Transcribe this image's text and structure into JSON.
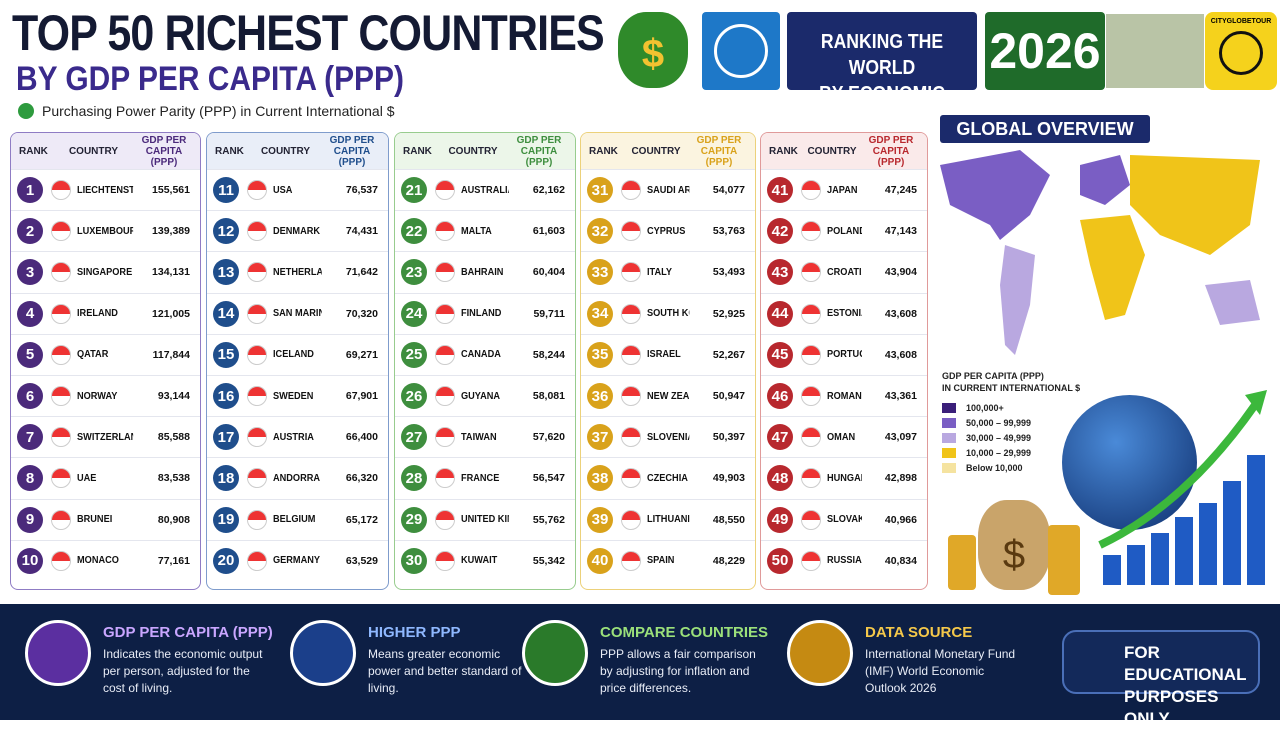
{
  "header": {
    "title": "TOP 50 RICHEST COUNTRIES",
    "subtitle": "BY GDP PER CAPITA (PPP)",
    "note": "Purchasing Power Parity (PPP) in Current International $",
    "badge": [
      "RANKING THE WORLD",
      "BY ECONOMIC POWER"
    ],
    "year": "2026",
    "logo": "CITYGLOBETOUR"
  },
  "table": {
    "columns": [
      "RANK",
      "COUNTRY",
      "GDP PER CAPITA (PPP)"
    ],
    "panels": [
      [
        [
          1,
          "LIECHTENSTEIN",
          "155,561"
        ],
        [
          2,
          "LUXEMBOURG",
          "139,389"
        ],
        [
          3,
          "SINGAPORE",
          "134,131"
        ],
        [
          4,
          "IRELAND",
          "121,005"
        ],
        [
          5,
          "QATAR",
          "117,844"
        ],
        [
          6,
          "NORWAY",
          "93,144"
        ],
        [
          7,
          "SWITZERLAND",
          "85,588"
        ],
        [
          8,
          "UAE",
          "83,538"
        ],
        [
          9,
          "BRUNEI",
          "80,908"
        ],
        [
          10,
          "MONACO",
          "77,161"
        ]
      ],
      [
        [
          11,
          "USA",
          "76,537"
        ],
        [
          12,
          "DENMARK",
          "74,431"
        ],
        [
          13,
          "NETHERLANDS",
          "71,642"
        ],
        [
          14,
          "SAN MARINO",
          "70,320"
        ],
        [
          15,
          "ICELAND",
          "69,271"
        ],
        [
          16,
          "SWEDEN",
          "67,901"
        ],
        [
          17,
          "AUSTRIA",
          "66,400"
        ],
        [
          18,
          "ANDORRA",
          "66,320"
        ],
        [
          19,
          "BELGIUM",
          "65,172"
        ],
        [
          20,
          "GERMANY",
          "63,529"
        ]
      ],
      [
        [
          21,
          "AUSTRALIA",
          "62,162"
        ],
        [
          22,
          "MALTA",
          "61,603"
        ],
        [
          23,
          "BAHRAIN",
          "60,404"
        ],
        [
          24,
          "FINLAND",
          "59,711"
        ],
        [
          25,
          "CANADA",
          "58,244"
        ],
        [
          26,
          "GUYANA",
          "58,081"
        ],
        [
          27,
          "TAIWAN",
          "57,620"
        ],
        [
          28,
          "FRANCE",
          "56,547"
        ],
        [
          29,
          "UNITED KINGDOM",
          "55,762"
        ],
        [
          30,
          "KUWAIT",
          "55,342"
        ]
      ],
      [
        [
          31,
          "SAUDI ARABIA",
          "54,077"
        ],
        [
          32,
          "CYPRUS",
          "53,763"
        ],
        [
          33,
          "ITALY",
          "53,493"
        ],
        [
          34,
          "SOUTH KOREA",
          "52,925"
        ],
        [
          35,
          "ISRAEL",
          "52,267"
        ],
        [
          36,
          "NEW ZEALAND",
          "50,947"
        ],
        [
          37,
          "SLOVENIA",
          "50,397"
        ],
        [
          38,
          "CZECHIA",
          "49,903"
        ],
        [
          39,
          "LITHUANIA",
          "48,550"
        ],
        [
          40,
          "SPAIN",
          "48,229"
        ]
      ],
      [
        [
          41,
          "JAPAN",
          "47,245"
        ],
        [
          42,
          "POLAND",
          "47,143"
        ],
        [
          43,
          "CROATIA",
          "43,904"
        ],
        [
          44,
          "ESTONIA",
          "43,608"
        ],
        [
          45,
          "PORTUGAL",
          "43,608"
        ],
        [
          46,
          "ROMANIA",
          "43,361"
        ],
        [
          47,
          "OMAN",
          "43,097"
        ],
        [
          48,
          "HUNGARY",
          "42,898"
        ],
        [
          49,
          "SLOVAKIA",
          "40,966"
        ],
        [
          50,
          "RUSSIA",
          "40,834"
        ]
      ]
    ]
  },
  "map": {
    "title": "GLOBAL OVERVIEW",
    "legend_title": [
      "GDP PER CAPITA (PPP)",
      "IN CURRENT INTERNATIONAL $"
    ],
    "legend": [
      {
        "label": "100,000+",
        "color": "#3b1f7a"
      },
      {
        "label": "50,000 – 99,999",
        "color": "#7a5ec4"
      },
      {
        "label": "30,000 – 49,999",
        "color": "#b9a8e0"
      },
      {
        "label": "10,000 – 29,999",
        "color": "#f0c419"
      },
      {
        "label": "Below 10,000",
        "color": "#f5e3a0"
      }
    ]
  },
  "footer": {
    "items": [
      {
        "title": "GDP PER CAPITA (PPP)",
        "text": "Indicates the economic output per person, adjusted for the cost of living."
      },
      {
        "title": "HIGHER PPP",
        "text": "Means greater economic power and better standard of living."
      },
      {
        "title": "COMPARE COUNTRIES",
        "text": "PPP allows a fair comparison by adjusting for inflation and price differences."
      },
      {
        "title": "DATA SOURCE",
        "text": "International Monetary Fund (IMF) World Economic Outlook 2026"
      }
    ],
    "badge": "FOR EDUCATIONAL PURPOSES ONLY"
  }
}
